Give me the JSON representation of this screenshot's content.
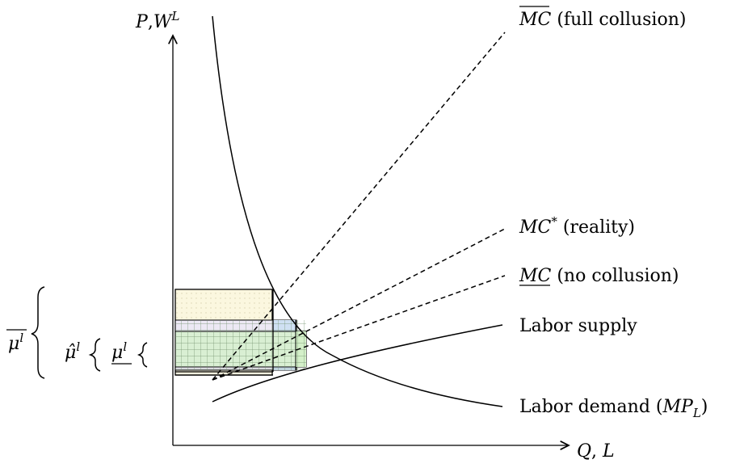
{
  "axes": {
    "y_label": {
      "main": "P",
      "sep": ",",
      "var": "W",
      "sup": "L"
    },
    "x_label": {
      "main": "Q",
      "sep": ", ",
      "var": "L"
    }
  },
  "curves": {
    "mc_bar": {
      "symbol": "MC",
      "text": " (full collusion)",
      "style": "dashed"
    },
    "mc_star": {
      "symbol": "MC",
      "sup": "*",
      "text": " (reality)",
      "style": "dashed"
    },
    "mc_under": {
      "symbol": "MC",
      "text": " (no collusion)",
      "style": "dashed"
    },
    "labor_supply": {
      "text": "Labor supply",
      "style": "solid"
    },
    "labor_demand": {
      "text": "Labor demand (",
      "symbol": "MP",
      "sub": "L",
      "close": ")",
      "style": "solid"
    }
  },
  "markups": {
    "mu_bar": {
      "symbol": "μ",
      "sup": "l"
    },
    "mu_hat": {
      "symbol": "μ̂",
      "sup": "l"
    },
    "mu_under": {
      "symbol": "μ",
      "sup": "l"
    }
  },
  "colors": {
    "line": "#000000",
    "full_collusion_fill": "#fbf7df",
    "reality_fill": "#ece8f4",
    "no_collusion_fill": "#d9efd3",
    "blue_strip": "#cfe0f3",
    "green_strip": "#d4f0c9"
  }
}
